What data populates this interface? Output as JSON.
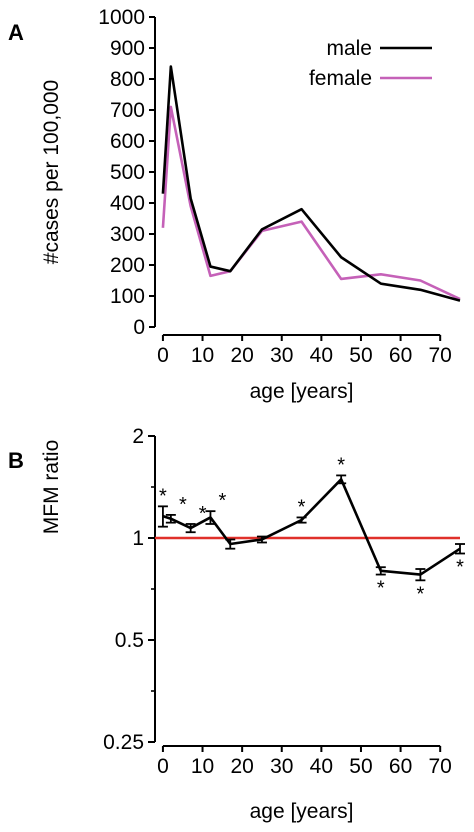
{
  "chart_data": [
    {
      "panel_label": "A",
      "type": "line",
      "xlabel": "age [years]",
      "ylabel": "#cases per 100,000",
      "xlim": [
        -2,
        75
      ],
      "ylim": [
        0,
        1000
      ],
      "xticks": [
        0,
        10,
        20,
        30,
        40,
        50,
        60,
        70
      ],
      "yticks": [
        0,
        100,
        200,
        300,
        400,
        500,
        600,
        700,
        800,
        900,
        1000
      ],
      "legend_position": "top-right",
      "series": [
        {
          "name": "male",
          "color": "#000000",
          "x": [
            0,
            2,
            7,
            12,
            17,
            25,
            35,
            45,
            55,
            65,
            75
          ],
          "y": [
            430,
            840,
            415,
            195,
            180,
            315,
            380,
            225,
            140,
            120,
            85
          ]
        },
        {
          "name": "female",
          "color": "#c561b8",
          "x": [
            0,
            2,
            7,
            12,
            17,
            25,
            35,
            45,
            55,
            65,
            75
          ],
          "y": [
            320,
            710,
            390,
            165,
            180,
            310,
            340,
            155,
            170,
            150,
            90
          ]
        }
      ]
    },
    {
      "panel_label": "B",
      "type": "line",
      "xlabel": "age [years]",
      "ylabel": "MFM ratio",
      "scale": "log2",
      "xlim": [
        -2,
        75
      ],
      "ylim": [
        0.25,
        2
      ],
      "xticks": [
        0,
        10,
        20,
        30,
        40,
        50,
        60,
        70
      ],
      "ytick_labels": [
        {
          "value": 0.25,
          "label": "0.25"
        },
        {
          "value": 0.5,
          "label": "0.5"
        },
        {
          "value": 1,
          "label": "1"
        },
        {
          "value": 2,
          "label": "2"
        }
      ],
      "reference_line": {
        "y": 1,
        "color": "#e0302a"
      },
      "series": [
        {
          "color": "#000000",
          "x": [
            0,
            2,
            7,
            12,
            17,
            25,
            35,
            45,
            55,
            65,
            75
          ],
          "y": [
            1.16,
            1.14,
            1.07,
            1.15,
            0.96,
            0.99,
            1.13,
            1.49,
            0.8,
            0.78,
            0.93
          ],
          "err": [
            0.08,
            0.03,
            0.03,
            0.05,
            0.03,
            0.02,
            0.02,
            0.04,
            0.02,
            0.03,
            0.03
          ],
          "significant": [
            true,
            true,
            true,
            true,
            false,
            false,
            true,
            true,
            true,
            true,
            true
          ],
          "star_above": [
            true,
            true,
            true,
            true,
            false,
            false,
            true,
            true,
            false,
            false,
            false
          ]
        }
      ],
      "marker_label": "*"
    }
  ]
}
